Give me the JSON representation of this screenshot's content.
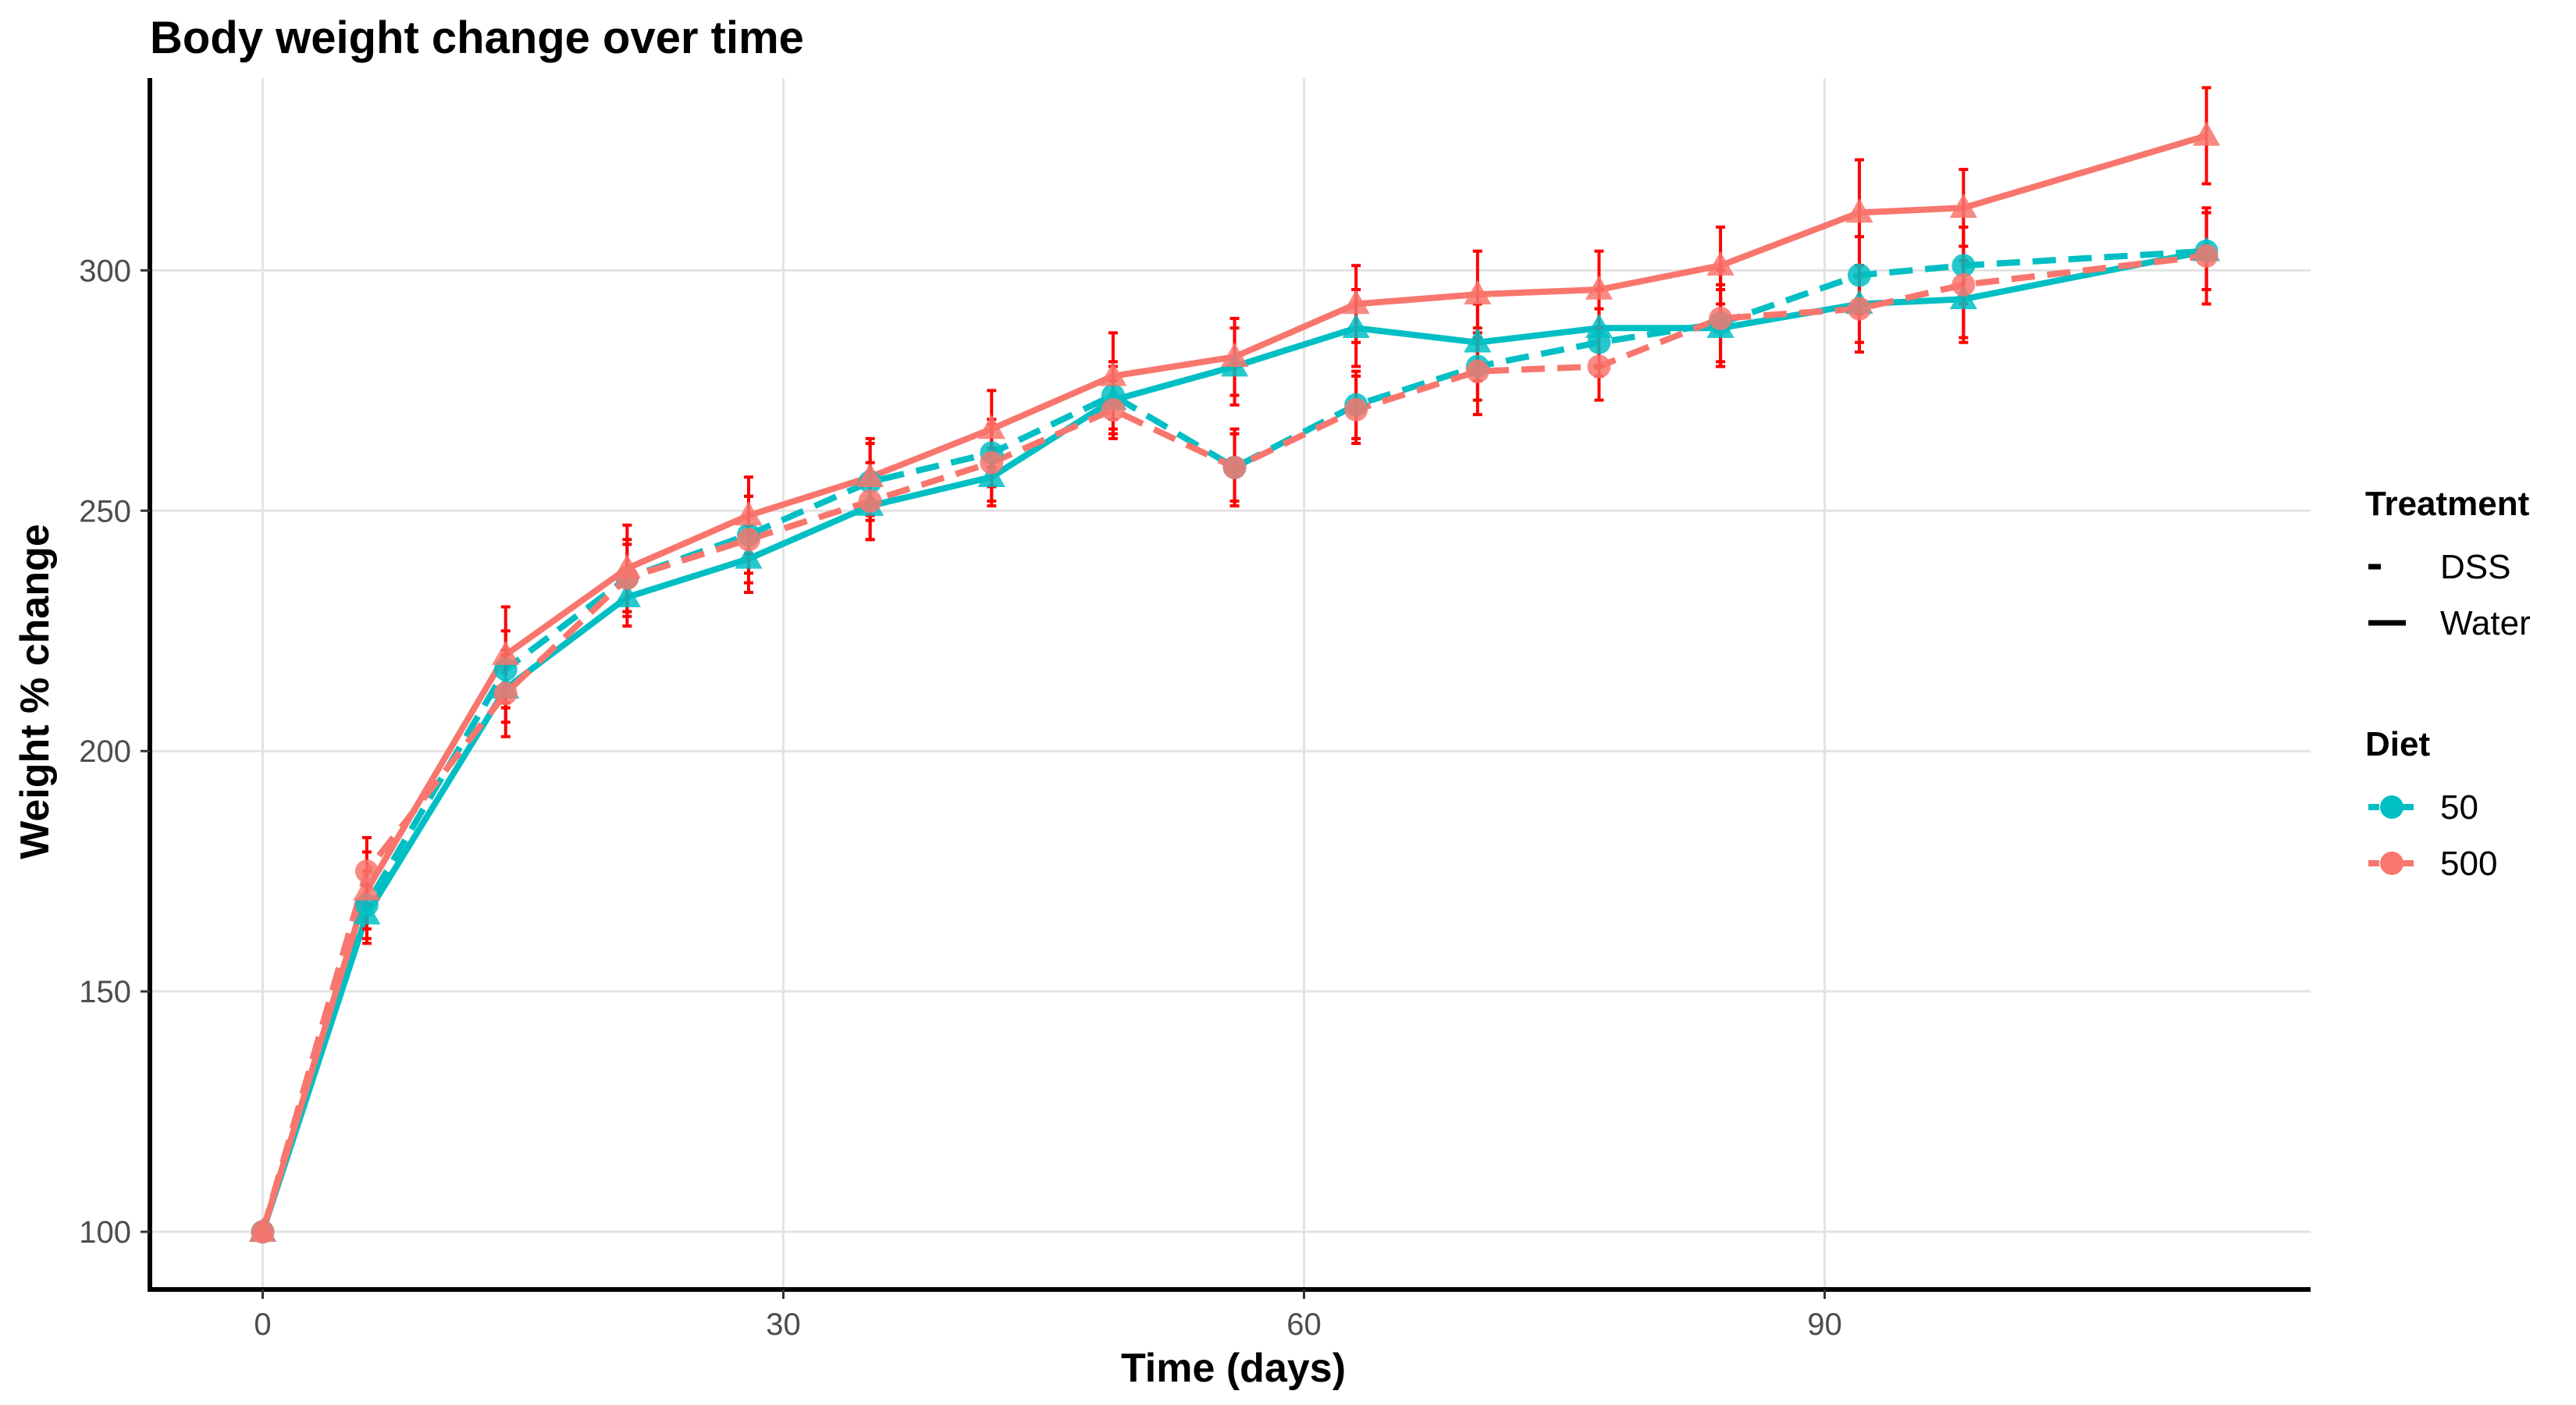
{
  "chart_data": {
    "type": "line",
    "title": "Body weight change over time",
    "xlabel": "Time (days)",
    "ylabel": "Weight % change",
    "xlim": [
      -6.5,
      118
    ],
    "ylim": [
      88,
      340
    ],
    "x_ticks": [
      0,
      30,
      60,
      90
    ],
    "y_ticks": [
      100,
      150,
      200,
      250,
      300
    ],
    "grid": true,
    "legend_position": "right",
    "legend": {
      "treatment_title": "Treatment",
      "treatment_items": [
        {
          "label": "DSS",
          "linetype": "dashed"
        },
        {
          "label": "Water",
          "linetype": "solid"
        }
      ],
      "diet_title": "Diet",
      "diet_items": [
        {
          "label": "50",
          "color": "#00BFC4"
        },
        {
          "label": "500",
          "color": "#F8766D"
        }
      ]
    },
    "x": [
      0,
      6,
      14,
      21,
      28,
      35,
      42,
      49,
      56,
      63,
      70,
      77,
      84,
      92,
      98,
      112
    ],
    "error_bar_color": "#FF0000",
    "series": [
      {
        "diet": "50",
        "treatment": "DSS",
        "color": "#00BFC4",
        "linetype": "dashed",
        "marker": "circle",
        "values": [
          100,
          168,
          217,
          236,
          245,
          256,
          262,
          274,
          259,
          272,
          280,
          285,
          289,
          299,
          301,
          304
        ],
        "errors": [
          0,
          7,
          8,
          7,
          8,
          8,
          7,
          7,
          8,
          7,
          7,
          7,
          8,
          8,
          8,
          8
        ]
      },
      {
        "diet": "50",
        "treatment": "Water",
        "color": "#00BFC4",
        "linetype": "solid",
        "marker": "triangle",
        "values": [
          100,
          166,
          213,
          232,
          240,
          251,
          257,
          273,
          280,
          288,
          285,
          288,
          288,
          293,
          294,
          304
        ],
        "errors": [
          0,
          6,
          7,
          6,
          7,
          7,
          6,
          7,
          8,
          8,
          8,
          8,
          8,
          8,
          8,
          8
        ]
      },
      {
        "diet": "500",
        "treatment": "DSS",
        "color": "#F8766D",
        "linetype": "dashed",
        "marker": "circle",
        "values": [
          100,
          175,
          212,
          236,
          244,
          252,
          260,
          271,
          259,
          271,
          279,
          280,
          290,
          292,
          297,
          303
        ],
        "errors": [
          0,
          7,
          9,
          8,
          9,
          8,
          8,
          6,
          7,
          7,
          9,
          7,
          10,
          9,
          12,
          10
        ]
      },
      {
        "diet": "500",
        "treatment": "Water",
        "color": "#F8766D",
        "linetype": "solid",
        "marker": "triangle",
        "values": [
          100,
          171,
          220,
          238,
          249,
          257,
          267,
          278,
          282,
          293,
          295,
          296,
          301,
          312,
          313,
          328
        ],
        "errors": [
          0,
          8,
          10,
          9,
          8,
          8,
          8,
          9,
          8,
          8,
          9,
          8,
          8,
          11,
          8,
          10
        ]
      }
    ]
  }
}
